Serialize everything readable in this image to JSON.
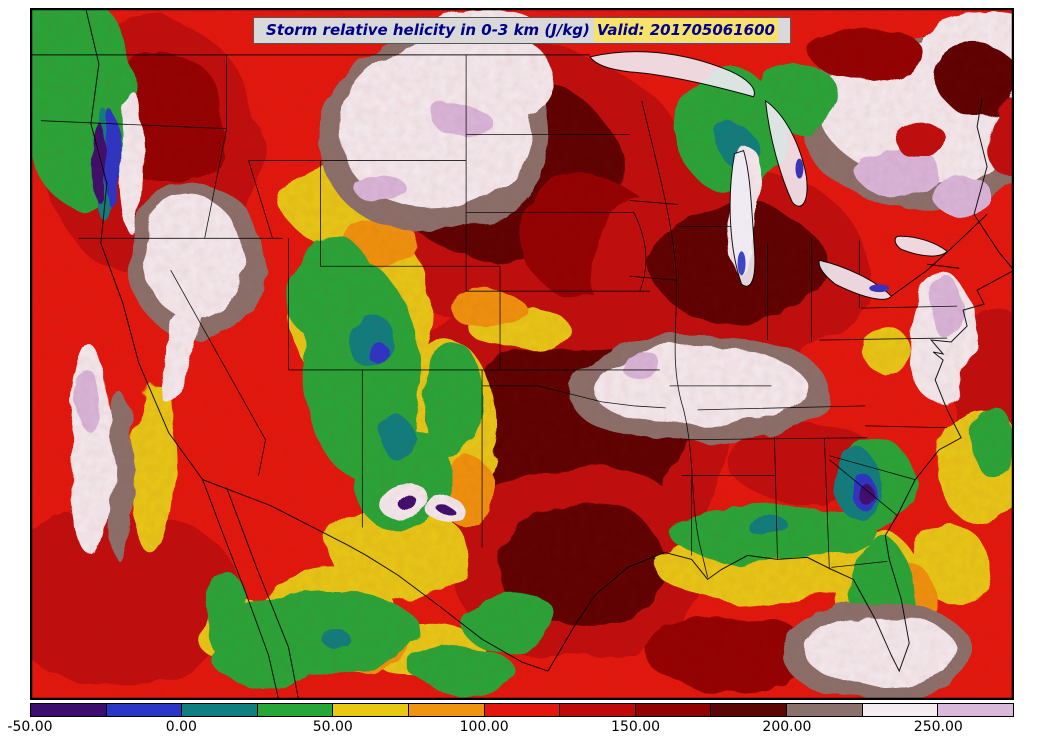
{
  "title": {
    "text": "Storm relative helicity in 0-3 km (J/kg)",
    "valid_label": "Valid: 201705061600",
    "text_color": "#00008b",
    "highlight_color": "#f7e26b"
  },
  "colorbar": {
    "tick_labels": [
      "-50.00",
      "0.00",
      "50.00",
      "100.00",
      "150.00",
      "200.00",
      "250.00"
    ],
    "tick_values": [
      -50,
      0,
      50,
      100,
      150,
      200,
      250
    ],
    "range_min": -50,
    "range_max": 275,
    "colors": [
      "#3c0d6e",
      "#2b35c8",
      "#107f7f",
      "#27a737",
      "#e8c912",
      "#f0930f",
      "#e3170d",
      "#c00909",
      "#930202",
      "#5d0606",
      "#8a716c",
      "#f4ecf0",
      "#d9b8dc"
    ]
  }
}
